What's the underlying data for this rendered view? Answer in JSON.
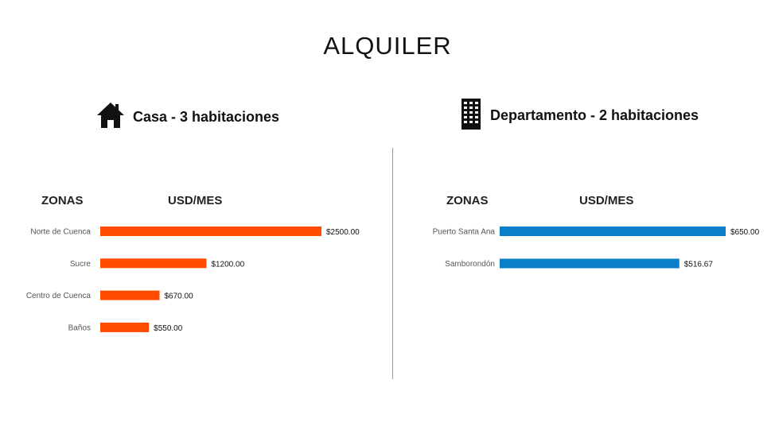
{
  "title": "ALQUILER",
  "colors": {
    "casa": "#FF4C00",
    "departamento": "#0A7FC9"
  },
  "sections": {
    "casa": {
      "label": "Casa - 3 habitaciones",
      "icon": "house-icon"
    },
    "departamento": {
      "label": "Departamento - 2 habitaciones",
      "icon": "building-icon"
    }
  },
  "columns": {
    "zonas": "ZONAS",
    "usd": "USD/MES"
  },
  "chart_data": [
    {
      "type": "bar",
      "orientation": "horizontal",
      "categories": [
        "Norte de Cuenca",
        "Sucre",
        "Centro de Cuenca",
        "Baños"
      ],
      "values": [
        2500,
        1200,
        670,
        550
      ],
      "value_labels": [
        "$2500.00",
        "$1200.00",
        "$670.00",
        "$550.00"
      ],
      "xlim": [
        0,
        2500
      ],
      "color": "#FF4C00",
      "grid": false
    },
    {
      "type": "bar",
      "orientation": "horizontal",
      "categories": [
        "Puerto Santa Ana",
        "Samborondón"
      ],
      "values": [
        650,
        516.67
      ],
      "value_labels": [
        "$650.00",
        "$516.67"
      ],
      "xlim": [
        0,
        650
      ],
      "color": "#0A7FC9",
      "grid": false
    }
  ]
}
